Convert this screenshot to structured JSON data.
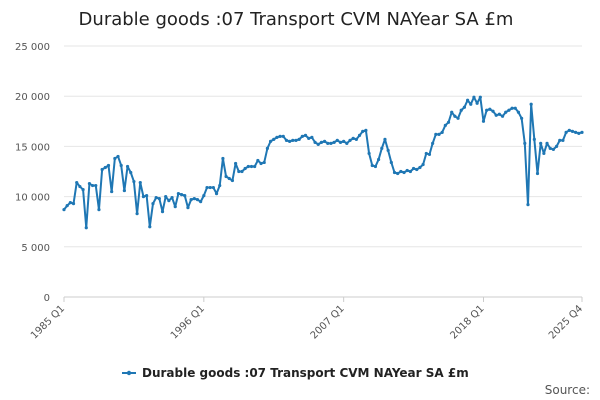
{
  "chart_data": {
    "type": "line",
    "title": "Durable goods :07 Transport CVM NAYear SA £m",
    "xlabel": "",
    "ylabel": "",
    "ylim": [
      0,
      25000
    ],
    "y_ticks": [
      0,
      5000,
      10000,
      15000,
      20000,
      25000
    ],
    "y_tick_labels": [
      "0",
      "5 000",
      "10 000",
      "15 000",
      "20 000",
      "25 000"
    ],
    "x_tick_labels": [
      "1985 Q1",
      "1996 Q1",
      "2007 Q1",
      "2018 Q1",
      "2025 Q4"
    ],
    "x_tick_quarter_index": [
      0,
      44,
      88,
      132,
      163
    ],
    "x_range_quarter_index": [
      0,
      163
    ],
    "grid": "horizontal",
    "legend_position": "bottom",
    "series": [
      {
        "name": "Durable goods :07 Transport CVM NAYear SA £m",
        "color": "#1f77b4",
        "values": [
          8700,
          9100,
          9400,
          9300,
          11400,
          11000,
          10700,
          6900,
          11300,
          11100,
          11100,
          8700,
          12700,
          12900,
          13100,
          10500,
          13800,
          14000,
          13100,
          10600,
          13000,
          12400,
          11500,
          8300,
          11400,
          10000,
          10100,
          7000,
          9300,
          9900,
          9800,
          8500,
          10000,
          9600,
          9900,
          9000,
          10300,
          10200,
          10100,
          8900,
          9700,
          9800,
          9700,
          9500,
          10100,
          10900,
          10900,
          10900,
          10300,
          11100,
          13800,
          12000,
          11800,
          11600,
          13300,
          12500,
          12500,
          12800,
          13000,
          13000,
          13000,
          13600,
          13300,
          13400,
          14800,
          15500,
          15700,
          15900,
          16000,
          16000,
          15600,
          15500,
          15600,
          15600,
          15700,
          16000,
          16100,
          15800,
          15900,
          15400,
          15200,
          15400,
          15500,
          15300,
          15300,
          15400,
          15600,
          15400,
          15500,
          15300,
          15600,
          15800,
          15700,
          16100,
          16500,
          16600,
          14300,
          13100,
          13000,
          13700,
          14800,
          15700,
          14600,
          13400,
          12400,
          12300,
          12500,
          12400,
          12600,
          12500,
          12800,
          12700,
          12900,
          13200,
          14300,
          14200,
          15300,
          16200,
          16200,
          16400,
          17100,
          17400,
          18400,
          18000,
          17800,
          18600,
          18900,
          19600,
          19200,
          19900,
          19300,
          19900,
          17500,
          18600,
          18700,
          18500,
          18100,
          18200,
          18000,
          18400,
          18600,
          18800,
          18800,
          18400,
          17800,
          15300,
          9200,
          19200,
          15700,
          12300,
          15300,
          14300,
          15300,
          14800,
          14700,
          15000,
          15600,
          15600,
          16400,
          16600,
          16500,
          16400,
          16300,
          16400
        ]
      }
    ]
  },
  "legend": {
    "label": "Durable goods :07 Transport CVM NAYear SA £m"
  },
  "source_label": "Source:"
}
